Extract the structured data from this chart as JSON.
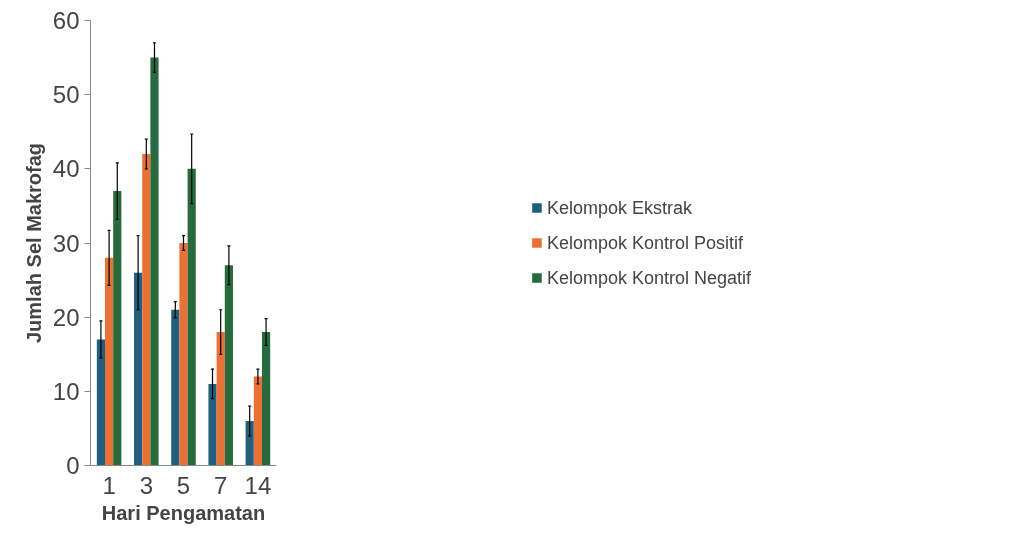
{
  "chart_data": {
    "type": "bar",
    "xlabel": "Hari Pengamatan",
    "ylabel": "Jumlah Sel Makrofag",
    "categories": [
      "1",
      "3",
      "5",
      "7",
      "14"
    ],
    "series": [
      {
        "name": "Kelompok Ekstrak",
        "color": "#1f5f82",
        "values": [
          17,
          26,
          21,
          11,
          6
        ],
        "errors": [
          2.5,
          5,
          1.1,
          2,
          2
        ]
      },
      {
        "name": "Kelompok Kontrol Positif",
        "color": "#ed7033",
        "values": [
          28,
          42,
          30,
          18,
          12
        ],
        "errors": [
          3.7,
          2,
          1,
          3,
          1
        ]
      },
      {
        "name": "Kelompok Kontrol Negatif",
        "color": "#256b3d",
        "values": [
          37,
          55,
          40,
          27,
          18
        ],
        "errors": [
          3.8,
          2,
          4.7,
          2.6,
          1.8
        ]
      }
    ],
    "ylim": [
      0,
      60
    ],
    "yticks": [
      0,
      10,
      20,
      30,
      40,
      50,
      60
    ],
    "grid": false,
    "legend": "right"
  }
}
